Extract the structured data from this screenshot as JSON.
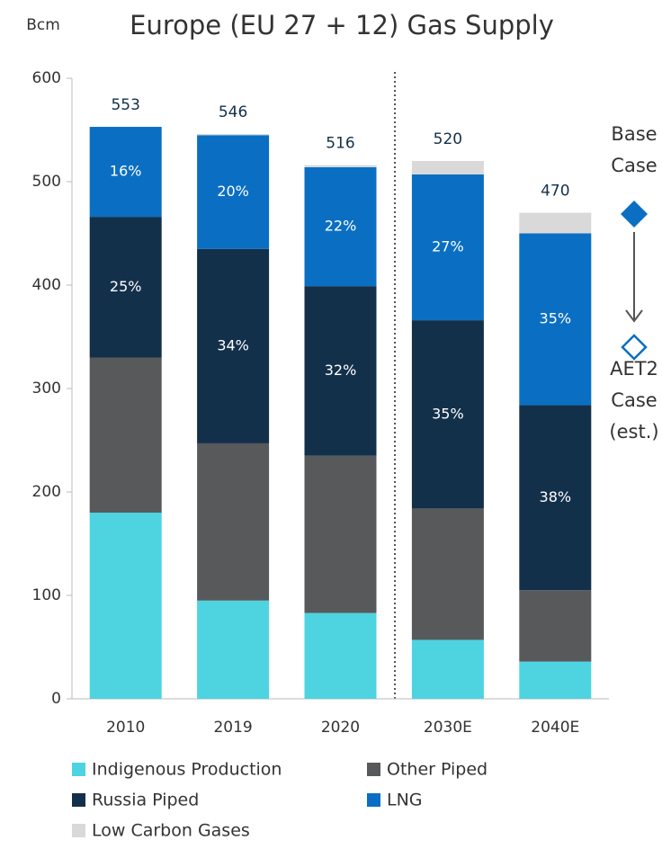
{
  "chart_data": {
    "type": "stacked_bar",
    "title": "Europe (EU 27 + 12) Gas Supply",
    "y_unit": "Bcm",
    "categories": [
      "2010",
      "2019",
      "2020",
      "2030E",
      "2040E"
    ],
    "series": [
      {
        "name": "Indigenous Production",
        "color": "#4dd4e0",
        "values": [
          180,
          95,
          83,
          57,
          36
        ]
      },
      {
        "name": "Other Piped",
        "color": "#58595b",
        "values": [
          150,
          152,
          152,
          127,
          69
        ]
      },
      {
        "name": "Russia Piped",
        "color": "#13304b",
        "values": [
          136,
          188,
          164,
          182,
          179
        ],
        "value_labels": [
          "25%",
          "34%",
          "32%",
          "35%",
          "38%"
        ]
      },
      {
        "name": "LNG",
        "color": "#0a6fc2",
        "values": [
          87,
          110,
          115,
          141,
          166
        ],
        "value_labels": [
          "16%",
          "20%",
          "22%",
          "27%",
          "35%"
        ]
      },
      {
        "name": "Low Carbon Gases",
        "color": "#d9d9d9",
        "values": [
          0,
          1,
          2,
          13,
          20
        ]
      }
    ],
    "totals": [
      553,
      546,
      516,
      520,
      470
    ],
    "ylim": [
      0,
      600
    ],
    "yticks": [
      0,
      100,
      200,
      300,
      400,
      500,
      600
    ],
    "annotations": {
      "base_case": [
        "Base",
        "Case"
      ],
      "aet2_case": [
        "AET2",
        "Case",
        "(est.)"
      ]
    }
  }
}
